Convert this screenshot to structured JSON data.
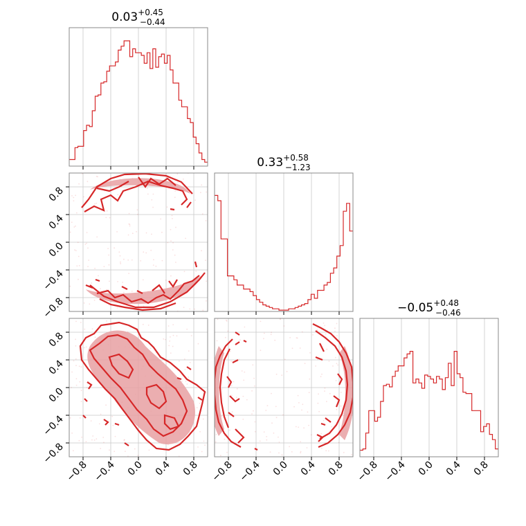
{
  "chart_data": {
    "type": "corner",
    "color": "#d62728",
    "parameters": [
      {
        "title": {
          "median": "0.03",
          "plus": "+0.45",
          "minus": "−0.44"
        },
        "range": [
          -1,
          1
        ],
        "hist": [
          0.05,
          0.05,
          0.14,
          0.15,
          0.15,
          0.27,
          0.31,
          0.3,
          0.42,
          0.53,
          0.54,
          0.63,
          0.64,
          0.72,
          0.76,
          0.76,
          0.79,
          0.88,
          0.91,
          0.95,
          0.95,
          0.83,
          0.89,
          0.86,
          0.86,
          0.84,
          0.78,
          0.86,
          0.74,
          0.89,
          0.75,
          0.83,
          0.85,
          0.78,
          0.84,
          0.73,
          0.63,
          0.63,
          0.5,
          0.45,
          0.45,
          0.36,
          0.33,
          0.22,
          0.17,
          0.1,
          0.05,
          0.03
        ]
      },
      {
        "title": {
          "median": "0.33",
          "plus": "+0.58",
          "minus": "−1.23"
        },
        "range": [
          -1,
          1
        ],
        "hist": [
          0.88,
          0.84,
          0.55,
          0.55,
          0.27,
          0.27,
          0.24,
          0.2,
          0.2,
          0.17,
          0.17,
          0.15,
          0.12,
          0.09,
          0.07,
          0.05,
          0.04,
          0.03,
          0.02,
          0.02,
          0.01,
          0.01,
          0.01,
          0.02,
          0.02,
          0.03,
          0.04,
          0.05,
          0.06,
          0.09,
          0.13,
          0.1,
          0.16,
          0.16,
          0.2,
          0.22,
          0.29,
          0.33,
          0.42,
          0.5,
          0.76,
          0.82,
          0.61
        ]
      },
      {
        "title": {
          "median": "−0.05",
          "plus": "+0.48",
          "minus": "−0.46"
        },
        "range": [
          -1,
          1
        ],
        "hist": [
          0.05,
          0.06,
          0.18,
          0.35,
          0.35,
          0.27,
          0.3,
          0.42,
          0.54,
          0.55,
          0.53,
          0.61,
          0.65,
          0.69,
          0.69,
          0.75,
          0.78,
          0.8,
          0.56,
          0.59,
          0.56,
          0.52,
          0.62,
          0.61,
          0.59,
          0.56,
          0.61,
          0.59,
          0.51,
          0.6,
          0.71,
          0.54,
          0.8,
          0.63,
          0.6,
          0.49,
          0.48,
          0.48,
          0.35,
          0.35,
          0.35,
          0.19,
          0.23,
          0.25,
          0.17,
          0.13,
          0.06
        ]
      }
    ],
    "tick_values": [
      -0.8,
      -0.4,
      0.0,
      0.4,
      0.8
    ],
    "tick_labels": [
      "−0.8",
      "−0.4",
      "0.0",
      "0.4",
      "0.8"
    ],
    "grid": true
  }
}
